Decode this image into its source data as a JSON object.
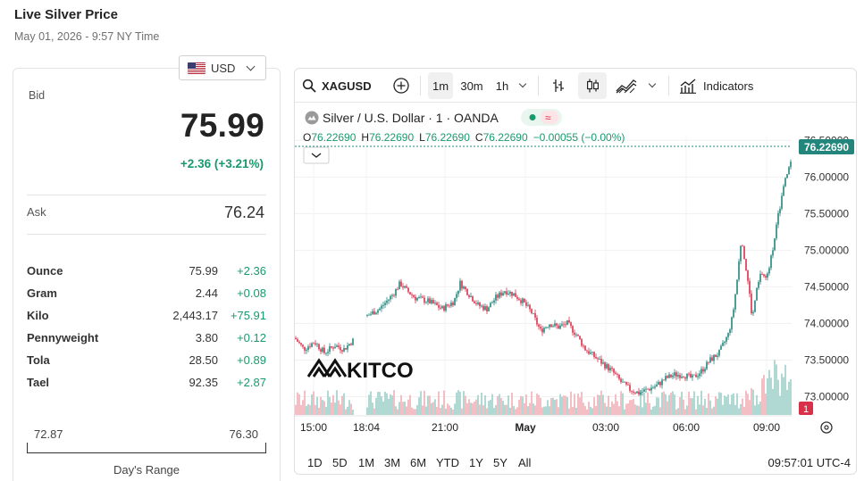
{
  "header": {
    "title": "Live Silver Price",
    "subtitle": "May 01, 2026 - 9:57 NY Time"
  },
  "currency": {
    "selected": "USD",
    "flag_icon": "us-flag-icon"
  },
  "quote": {
    "bid_label": "Bid",
    "bid": "75.99",
    "bid_change": "+2.36 (+3.21%)",
    "ask_label": "Ask",
    "ask": "76.24"
  },
  "units": [
    {
      "name": "Ounce",
      "price": "75.99",
      "change": "+2.36"
    },
    {
      "name": "Gram",
      "price": "2.44",
      "change": "+0.08"
    },
    {
      "name": "Kilo",
      "price": "2,443.17",
      "change": "+75.91"
    },
    {
      "name": "Pennyweight",
      "price": "3.80",
      "change": "+0.12"
    },
    {
      "name": "Tola",
      "price": "28.50",
      "change": "+0.89"
    },
    {
      "name": "Tael",
      "price": "92.35",
      "change": "+2.87"
    }
  ],
  "days_range": {
    "low": "72.87",
    "high": "76.30",
    "label": "Day's Range"
  },
  "toolbar": {
    "symbol": "XAGUSD",
    "intervals": [
      "1m",
      "30m",
      "1h"
    ],
    "active_interval": "1m",
    "indicators_label": "Indicators"
  },
  "chart_legend": {
    "title": "Silver / U.S. Dollar · 1 · OANDA",
    "open_label": "O",
    "open": "76.22690",
    "high_label": "H",
    "high": "76.22690",
    "low_label": "L",
    "low": "76.22690",
    "close_label": "C",
    "close": "76.22690",
    "change": "−0.00055 (−0.00%)"
  },
  "watermark": "KITCO",
  "last_price_tag": "76.22690",
  "volume_badge": "1",
  "bottom_bar": {
    "ranges": [
      "1D",
      "5D",
      "1M",
      "3M",
      "6M",
      "YTD",
      "1Y",
      "5Y",
      "All"
    ],
    "clock": "09:57:01 UTC-4"
  },
  "colors": {
    "up": "#1a9a6c",
    "down": "#d9304a",
    "teal_candle": "#22867d",
    "price_tag": "#22867d",
    "volume_up": "#a8d5cf",
    "volume_down": "#f2b8bd"
  },
  "chart_data": {
    "type": "candlestick",
    "y_ticks": [
      "76.50000",
      "76.00000",
      "75.50000",
      "75.00000",
      "74.50000",
      "74.00000",
      "73.50000",
      "73.00000"
    ],
    "y_range": [
      72.75,
      76.65
    ],
    "x_ticks": [
      "15:00",
      "18:04",
      "21:00",
      "May",
      "03:00",
      "06:00",
      "09:00"
    ],
    "price_path": [
      [
        0,
        73.8
      ],
      [
        10,
        73.65
      ],
      [
        22,
        73.75
      ],
      [
        33,
        73.6
      ],
      [
        45,
        73.7
      ],
      [
        55,
        73.65
      ],
      [
        66,
        73.78
      ],
      [
        68,
        74.15
      ],
      [
        80,
        74.1
      ],
      [
        95,
        74.2
      ],
      [
        110,
        74.4
      ],
      [
        118,
        74.55
      ],
      [
        125,
        74.45
      ],
      [
        135,
        74.35
      ],
      [
        150,
        74.3
      ],
      [
        165,
        74.2
      ],
      [
        178,
        74.3
      ],
      [
        185,
        74.55
      ],
      [
        195,
        74.4
      ],
      [
        205,
        74.25
      ],
      [
        215,
        74.2
      ],
      [
        225,
        74.35
      ],
      [
        235,
        74.45
      ],
      [
        245,
        74.4
      ],
      [
        255,
        74.3
      ],
      [
        265,
        74.15
      ],
      [
        275,
        73.9
      ],
      [
        285,
        74.0
      ],
      [
        295,
        73.95
      ],
      [
        305,
        74.0
      ],
      [
        315,
        73.85
      ],
      [
        325,
        73.65
      ],
      [
        335,
        73.55
      ],
      [
        345,
        73.45
      ],
      [
        355,
        73.35
      ],
      [
        365,
        73.2
      ],
      [
        375,
        73.1
      ],
      [
        385,
        73.05
      ],
      [
        395,
        73.1
      ],
      [
        405,
        73.15
      ],
      [
        415,
        73.25
      ],
      [
        425,
        73.3
      ],
      [
        435,
        73.3
      ],
      [
        445,
        73.25
      ],
      [
        455,
        73.35
      ],
      [
        465,
        73.5
      ],
      [
        475,
        73.6
      ],
      [
        485,
        73.85
      ],
      [
        490,
        74.1
      ],
      [
        495,
        74.6
      ],
      [
        500,
        75.2
      ],
      [
        503,
        74.9
      ],
      [
        508,
        74.5
      ],
      [
        512,
        74.05
      ],
      [
        516,
        74.4
      ],
      [
        522,
        74.7
      ],
      [
        528,
        74.6
      ],
      [
        533,
        74.9
      ],
      [
        540,
        75.4
      ],
      [
        546,
        75.8
      ],
      [
        552,
        76.1
      ],
      [
        556,
        76.23
      ]
    ],
    "volume_series": "per-minute volume bars, green when up, red when down, rising sharply near 09:00"
  }
}
